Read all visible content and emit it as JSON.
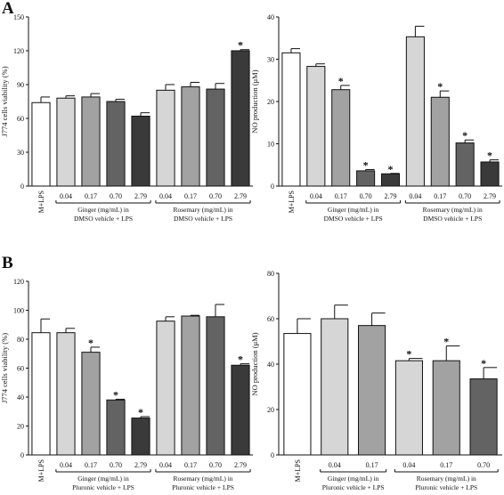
{
  "panel_letters": [
    "A",
    "B"
  ],
  "colors": {
    "control": "#ffffff",
    "c1": "#d6d6d6",
    "c2": "#a2a2a2",
    "c3": "#636363",
    "c4": "#3a3a3a",
    "stroke": "#111111"
  },
  "chart_data": [
    {
      "type": "bar",
      "panel": "A",
      "ylabel": "J774 cells viability (%)",
      "ylim": [
        0,
        150
      ],
      "yticks": [
        "0",
        "30",
        "60",
        "90",
        "120",
        "150"
      ],
      "categories": [
        "M+LPS",
        "0.04",
        "0.17",
        "0.70",
        "2.79",
        "0.04",
        "0.17",
        "0.70",
        "2.79"
      ],
      "values": [
        74,
        78,
        79,
        75,
        62,
        85,
        88,
        86,
        120
      ],
      "errors": [
        5,
        2,
        3,
        2,
        3,
        5,
        4,
        5,
        1
      ],
      "significant": [
        false,
        false,
        false,
        false,
        false,
        false,
        false,
        false,
        true
      ],
      "fills": [
        "control",
        "c1",
        "c2",
        "c3",
        "c4",
        "c1",
        "c2",
        "c3",
        "c4"
      ],
      "groups": [
        {
          "start": 1,
          "end": 4,
          "line1": "Ginger (mg/mL) in",
          "line2": "DMSO vehicle + LPS"
        },
        {
          "start": 5,
          "end": 8,
          "line1": "Rosemary (mg/mL) in",
          "line2": "DMSO vehicle + LPS"
        }
      ]
    },
    {
      "type": "bar",
      "panel": "A",
      "ylabel": "NO production (μM)",
      "ylim": [
        0,
        40
      ],
      "yticks": [
        "0",
        "10",
        "20",
        "30",
        "40"
      ],
      "categories": [
        "M+LPS",
        "0.04",
        "0.17",
        "0.70",
        "2.79",
        "0.04",
        "0.17",
        "0.70",
        "2.79"
      ],
      "values": [
        31.5,
        28.3,
        22.8,
        3.6,
        2.9,
        35.3,
        21.0,
        10.2,
        5.7
      ],
      "errors": [
        1.0,
        0.6,
        1.0,
        0.3,
        0.1,
        2.5,
        1.5,
        0.7,
        0.5
      ],
      "significant": [
        false,
        false,
        true,
        true,
        true,
        false,
        true,
        true,
        true
      ],
      "fills": [
        "control",
        "c1",
        "c2",
        "c3",
        "c4",
        "c1",
        "c2",
        "c3",
        "c4"
      ],
      "groups": [
        {
          "start": 1,
          "end": 4,
          "line1": "Ginger (mg/mL) in",
          "line2": "DMSO vehicle + LPS"
        },
        {
          "start": 5,
          "end": 8,
          "line1": "Rosemary (mg/mL) in",
          "line2": "DMSO vehicle + LPS"
        }
      ]
    },
    {
      "type": "bar",
      "panel": "B",
      "ylabel": "J774 cells viability (%)",
      "ylim": [
        0,
        120
      ],
      "yticks": [
        "0",
        "20",
        "40",
        "60",
        "80",
        "100",
        "120"
      ],
      "categories": [
        "M+LPS",
        "0.04",
        "0.17",
        "0.70",
        "2.79",
        "0.04",
        "0.17",
        "0.70",
        "2.79"
      ],
      "values": [
        84.5,
        84.5,
        71,
        38,
        25.5,
        92.5,
        96,
        95.5,
        62
      ],
      "errors": [
        9.5,
        3,
        3.5,
        0.5,
        1,
        3,
        0.5,
        8.5,
        1
      ],
      "significant": [
        false,
        false,
        true,
        true,
        true,
        false,
        false,
        false,
        true
      ],
      "fills": [
        "control",
        "c1",
        "c2",
        "c3",
        "c4",
        "c1",
        "c2",
        "c3",
        "c4"
      ],
      "groups": [
        {
          "start": 1,
          "end": 4,
          "line1": "Ginger (mg/mL) in",
          "line2": "Pluronic vehicle + LPS"
        },
        {
          "start": 5,
          "end": 8,
          "line1": "Rosemary (mg/mL) in",
          "line2": "Pluronic vehicle + LPS"
        }
      ]
    },
    {
      "type": "bar",
      "panel": "B",
      "ylabel": "NO production (μM)",
      "ylim": [
        0,
        80
      ],
      "yticks": [
        "0",
        "20",
        "40",
        "60",
        "80"
      ],
      "categories": [
        "M+LPS",
        "0.04",
        "0.17",
        "0.04",
        "0.17",
        "0.70"
      ],
      "values": [
        53.5,
        60,
        57,
        41.5,
        41.5,
        33.5
      ],
      "errors": [
        6.5,
        6,
        5.5,
        1,
        6.5,
        5
      ],
      "significant": [
        false,
        false,
        false,
        true,
        true,
        true
      ],
      "fills": [
        "control",
        "c1",
        "c2",
        "c1",
        "c2",
        "c3"
      ],
      "groups": [
        {
          "start": 1,
          "end": 2,
          "line1": "Ginger (mg/mL) in",
          "line2": "Pluronic vehicle + LPS"
        },
        {
          "start": 3,
          "end": 5,
          "line1": "Rosemary (mg/mL) in",
          "line2": "Pluronic vehicle + LPS"
        }
      ]
    }
  ]
}
